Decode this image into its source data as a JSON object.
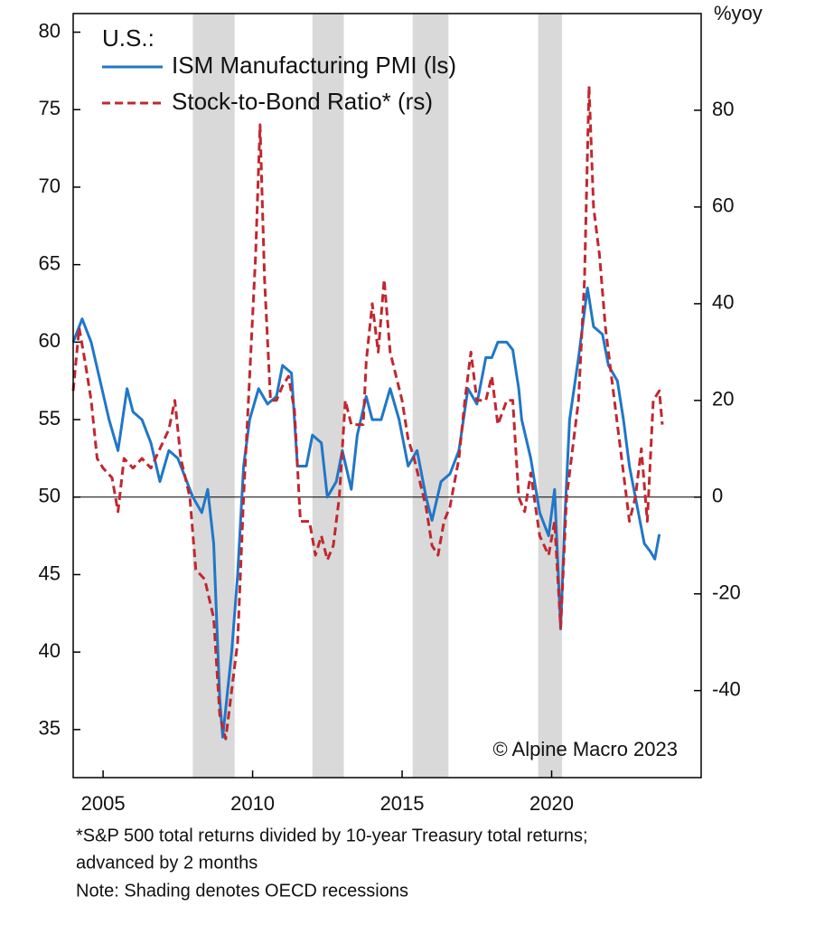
{
  "chart_data": {
    "type": "line",
    "legend_title": "U.S.:",
    "y2_label": "%yoy",
    "annotation": "© Alpine Macro 2023",
    "footnotes": [
      "*S&P 500 total returns divided by 10-year Treasury total returns;",
      "advanced by 2 months",
      "Note: Shading denotes OECD recessions"
    ],
    "xlim": [
      2004,
      2025
    ],
    "xticks": [
      2005,
      2010,
      2015,
      2020
    ],
    "ylim": [
      31.9,
      81.2
    ],
    "yticks": [
      35,
      40,
      45,
      50,
      55,
      60,
      65,
      70,
      75,
      80
    ],
    "y2lim": [
      -58,
      100
    ],
    "y2ticks": [
      -40,
      -20,
      0,
      20,
      40,
      60,
      80
    ],
    "shading": [
      [
        2008.0,
        2009.4
      ],
      [
        2012.0,
        2013.05
      ],
      [
        2015.35,
        2016.55
      ],
      [
        2019.55,
        2020.35
      ]
    ],
    "legend": "upper left",
    "series": [
      {
        "name": "ISM Manufacturing PMI (ls)",
        "color": "#1f77c8",
        "dash": false,
        "x": [
          2004.0,
          2004.3,
          2004.6,
          2004.9,
          2005.2,
          2005.5,
          2005.8,
          2006.0,
          2006.3,
          2006.6,
          2006.9,
          2007.2,
          2007.5,
          2007.8,
          2008.0,
          2008.3,
          2008.5,
          2008.7,
          2008.9,
          2009.0,
          2009.3,
          2009.5,
          2009.7,
          2009.9,
          2010.2,
          2010.5,
          2010.8,
          2011.0,
          2011.3,
          2011.5,
          2011.8,
          2012.0,
          2012.3,
          2012.5,
          2012.8,
          2013.0,
          2013.3,
          2013.5,
          2013.8,
          2014.0,
          2014.3,
          2014.6,
          2014.9,
          2015.2,
          2015.5,
          2015.8,
          2016.0,
          2016.3,
          2016.6,
          2016.9,
          2017.2,
          2017.5,
          2017.8,
          2018.0,
          2018.2,
          2018.5,
          2018.7,
          2018.9,
          2019.0,
          2019.3,
          2019.6,
          2019.9,
          2020.1,
          2020.3,
          2020.45,
          2020.6,
          2020.9,
          2021.2,
          2021.4,
          2021.7,
          2021.9,
          2022.2,
          2022.4,
          2022.6,
          2022.9,
          2023.1,
          2023.3,
          2023.45,
          2023.6
        ],
        "values": [
          60,
          61.5,
          60,
          57.5,
          55,
          53,
          57,
          55.5,
          55,
          53.5,
          51,
          53,
          52.5,
          51,
          50,
          49,
          50.5,
          47,
          37,
          34.5,
          40,
          45,
          52,
          55,
          57,
          56,
          56.5,
          58.5,
          58,
          52,
          52,
          54,
          53.5,
          50,
          51,
          53,
          50.5,
          54,
          56.5,
          55,
          55,
          57,
          55,
          52,
          53,
          50,
          48.5,
          51,
          51.5,
          53,
          57,
          56,
          59,
          59,
          60,
          60,
          59.5,
          57,
          55,
          52.5,
          49,
          47.5,
          50.5,
          41.5,
          49,
          55,
          59,
          63.5,
          61,
          60.5,
          58.5,
          57.5,
          55,
          52,
          49,
          47,
          46.5,
          46,
          47.6
        ]
      },
      {
        "name": "Stock-to-Bond Ratio* (rs)",
        "color": "#c0282f",
        "dash": true,
        "axis": "y2",
        "x": [
          2004.0,
          2004.2,
          2004.4,
          2004.6,
          2004.8,
          2005.0,
          2005.3,
          2005.5,
          2005.7,
          2006.0,
          2006.3,
          2006.6,
          2006.9,
          2007.2,
          2007.4,
          2007.6,
          2007.9,
          2008.1,
          2008.4,
          2008.7,
          2008.9,
          2009.1,
          2009.3,
          2009.5,
          2009.7,
          2009.9,
          2010.1,
          2010.25,
          2010.4,
          2010.6,
          2010.8,
          2011.0,
          2011.2,
          2011.4,
          2011.6,
          2011.9,
          2012.1,
          2012.3,
          2012.5,
          2012.7,
          2012.9,
          2013.1,
          2013.3,
          2013.5,
          2013.7,
          2013.8,
          2014.0,
          2014.2,
          2014.4,
          2014.6,
          2014.8,
          2015.0,
          2015.2,
          2015.4,
          2015.6,
          2015.8,
          2016.0,
          2016.2,
          2016.4,
          2016.6,
          2016.9,
          2017.1,
          2017.3,
          2017.5,
          2017.8,
          2018.0,
          2018.2,
          2018.5,
          2018.7,
          2018.9,
          2019.1,
          2019.3,
          2019.6,
          2019.9,
          2020.1,
          2020.3,
          2020.5,
          2020.7,
          2020.9,
          2021.1,
          2021.25,
          2021.4,
          2021.6,
          2021.8,
          2022.0,
          2022.2,
          2022.4,
          2022.6,
          2022.8,
          2023.0,
          2023.2,
          2023.4,
          2023.6,
          2023.7
        ],
        "values": [
          22,
          35,
          28,
          20,
          8,
          6,
          4,
          -3,
          8,
          6,
          8,
          6,
          10,
          14,
          20,
          8,
          0,
          -15,
          -17,
          -25,
          -45,
          -50,
          -40,
          -30,
          0,
          25,
          50,
          77,
          45,
          20,
          20,
          23,
          25,
          18,
          -5,
          -5,
          -12,
          -8,
          -13,
          -10,
          0,
          20,
          15,
          15,
          15,
          28,
          40,
          30,
          45,
          30,
          25,
          20,
          12,
          8,
          3,
          -2,
          -10,
          -12,
          -5,
          -2,
          8,
          20,
          30,
          20,
          20,
          25,
          15,
          20,
          20,
          0,
          -3,
          5,
          -8,
          -12,
          -5,
          -27,
          0,
          10,
          20,
          45,
          85,
          60,
          50,
          35,
          25,
          15,
          5,
          -5,
          0,
          10,
          -5,
          20,
          22,
          15
        ]
      }
    ]
  }
}
